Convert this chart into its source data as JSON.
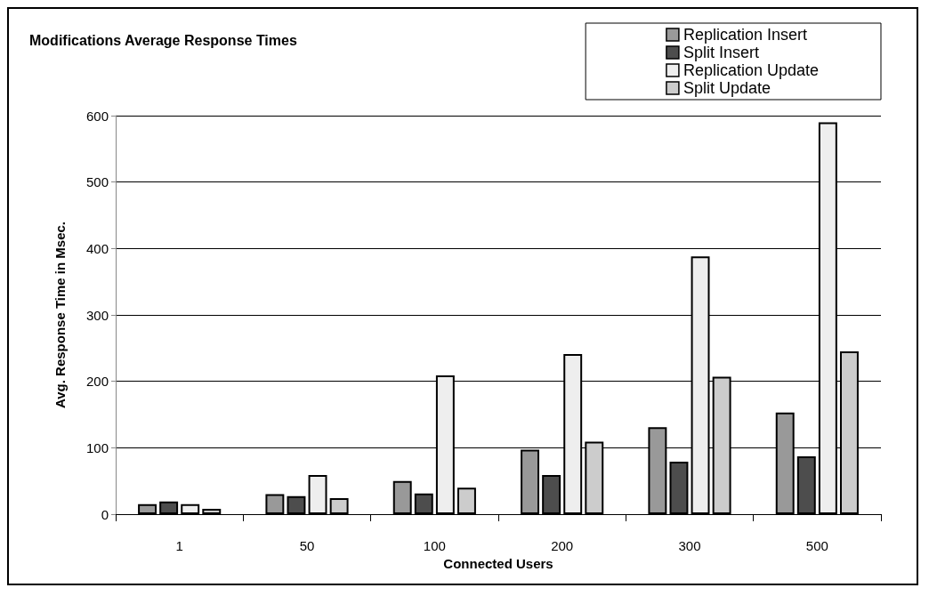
{
  "chart_data": {
    "type": "bar",
    "title": "Modifications Average Response Times",
    "xlabel": "Connected Users",
    "ylabel": "Avg. Response Time in Msec.",
    "categories": [
      "1",
      "50",
      "100",
      "200",
      "300",
      "500"
    ],
    "series": [
      {
        "name": "Replication Insert",
        "color": "#999999",
        "values": [
          15,
          30,
          50,
          97,
          131,
          153
        ]
      },
      {
        "name": "Split Insert",
        "color": "#4d4d4d",
        "values": [
          19,
          27,
          31,
          59,
          79,
          87
        ]
      },
      {
        "name": "Replication Update",
        "color": "#eeeeee",
        "values": [
          15,
          59,
          209,
          241,
          388,
          590
        ]
      },
      {
        "name": "Split Update",
        "color": "#cccccc",
        "values": [
          8,
          24,
          40,
          109,
          207,
          245
        ]
      }
    ],
    "ylim": [
      0,
      600
    ],
    "yticks": [
      0,
      100,
      200,
      300,
      400,
      500,
      600
    ],
    "grid": "y",
    "legend": "top right"
  }
}
